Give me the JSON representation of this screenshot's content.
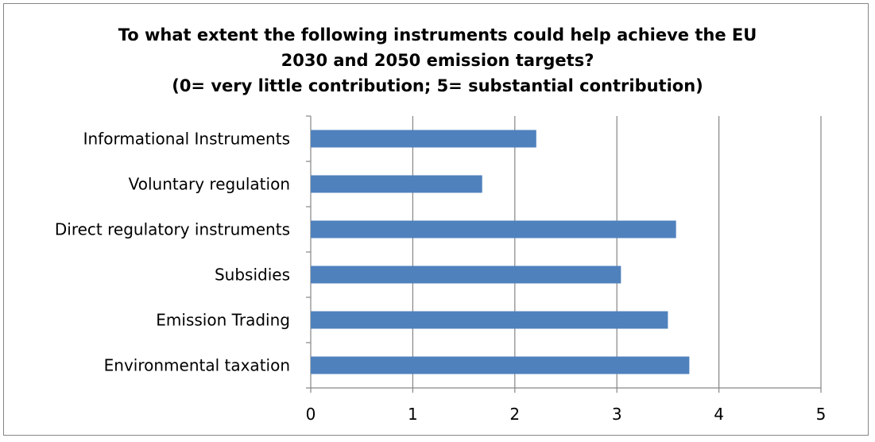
{
  "chart_data": {
    "type": "bar",
    "orientation": "horizontal",
    "title_lines": [
      "To what extent the following instruments could help achieve the EU",
      "2030 and 2050 emission targets?",
      "(0= very little contribution; 5= substantial contribution)"
    ],
    "categories": [
      "Informational Instruments",
      "Voluntary regulation",
      "Direct regulatory instruments",
      "Subsidies",
      "Emission Trading",
      "Environmental taxation"
    ],
    "values": [
      2.21,
      1.68,
      3.58,
      3.04,
      3.5,
      3.71
    ],
    "xlim": [
      0,
      5
    ],
    "xticks": [
      "0",
      "1",
      "2",
      "3",
      "4",
      "5"
    ],
    "grid": true,
    "bar_color": "#4f81bd",
    "grid_color": "#868686"
  }
}
